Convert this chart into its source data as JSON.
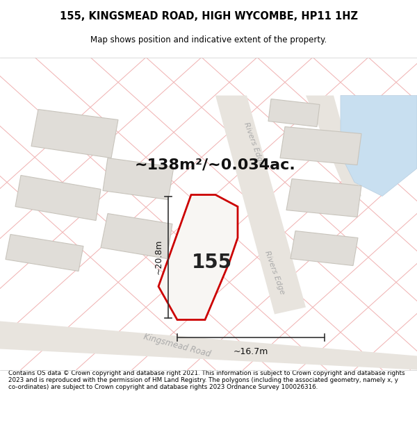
{
  "title_line1": "155, KINGSMEAD ROAD, HIGH WYCOMBE, HP11 1HZ",
  "title_line2": "Map shows position and indicative extent of the property.",
  "area_text": "~138m²/~0.034ac.",
  "label_155": "155",
  "dim_width": "~16.7m",
  "dim_height": "~20.8m",
  "footer_text": "Contains OS data © Crown copyright and database right 2021. This information is subject to Crown copyright and database rights 2023 and is reproduced with the permission of HM Land Registry. The polygons (including the associated geometry, namely x, y co-ordinates) are subject to Crown copyright and database rights 2023 Ordnance Survey 100026316.",
  "map_bg": "#f7f5f2",
  "road_label_color": "#aaaaaa",
  "title_bg": "#ffffff",
  "footer_bg": "#ffffff",
  "dim_line_color": "#333333",
  "prop_fill": "#f0eeea",
  "prop_stroke": "#cc0000",
  "building_fill": "#e0ddd8",
  "building_stroke": "#c8c4bc",
  "road_fill": "#e8e3da",
  "pink_line": "#f0b0b0",
  "river_fill": "#c8dff0",
  "dim_text_size": 9,
  "area_text_size": 16,
  "label_size": 20
}
